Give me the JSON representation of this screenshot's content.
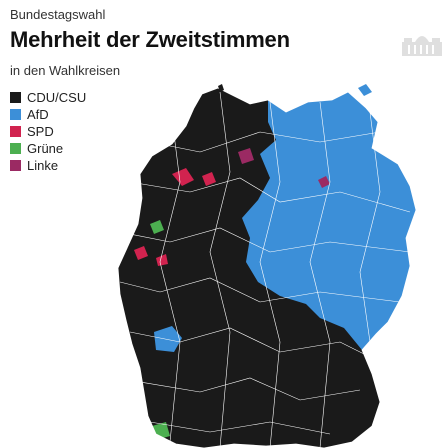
{
  "header": {
    "kicker": "Bundestagswahl",
    "title": "Mehrheit der Zweitstimmen",
    "subtitle": "in den Wahlkreisen"
  },
  "legend": [
    {
      "label": "CDU/CSU",
      "color": "#1a1a1a"
    },
    {
      "label": "AfD",
      "color": "#3c8fd8"
    },
    {
      "label": "SPD",
      "color": "#d1234f"
    },
    {
      "label": "Grüne",
      "color": "#4caf50"
    },
    {
      "label": "Linke",
      "color": "#9b2a63"
    }
  ],
  "map": {
    "region": "Germany",
    "party_colors": {
      "CDU/CSU": "#1a1a1a",
      "AfD": "#3c8fd8",
      "SPD": "#d1234f",
      "Grüne": "#4caf50",
      "Linke": "#9b2a63"
    },
    "watermark_icon": "reichstag-icon"
  }
}
